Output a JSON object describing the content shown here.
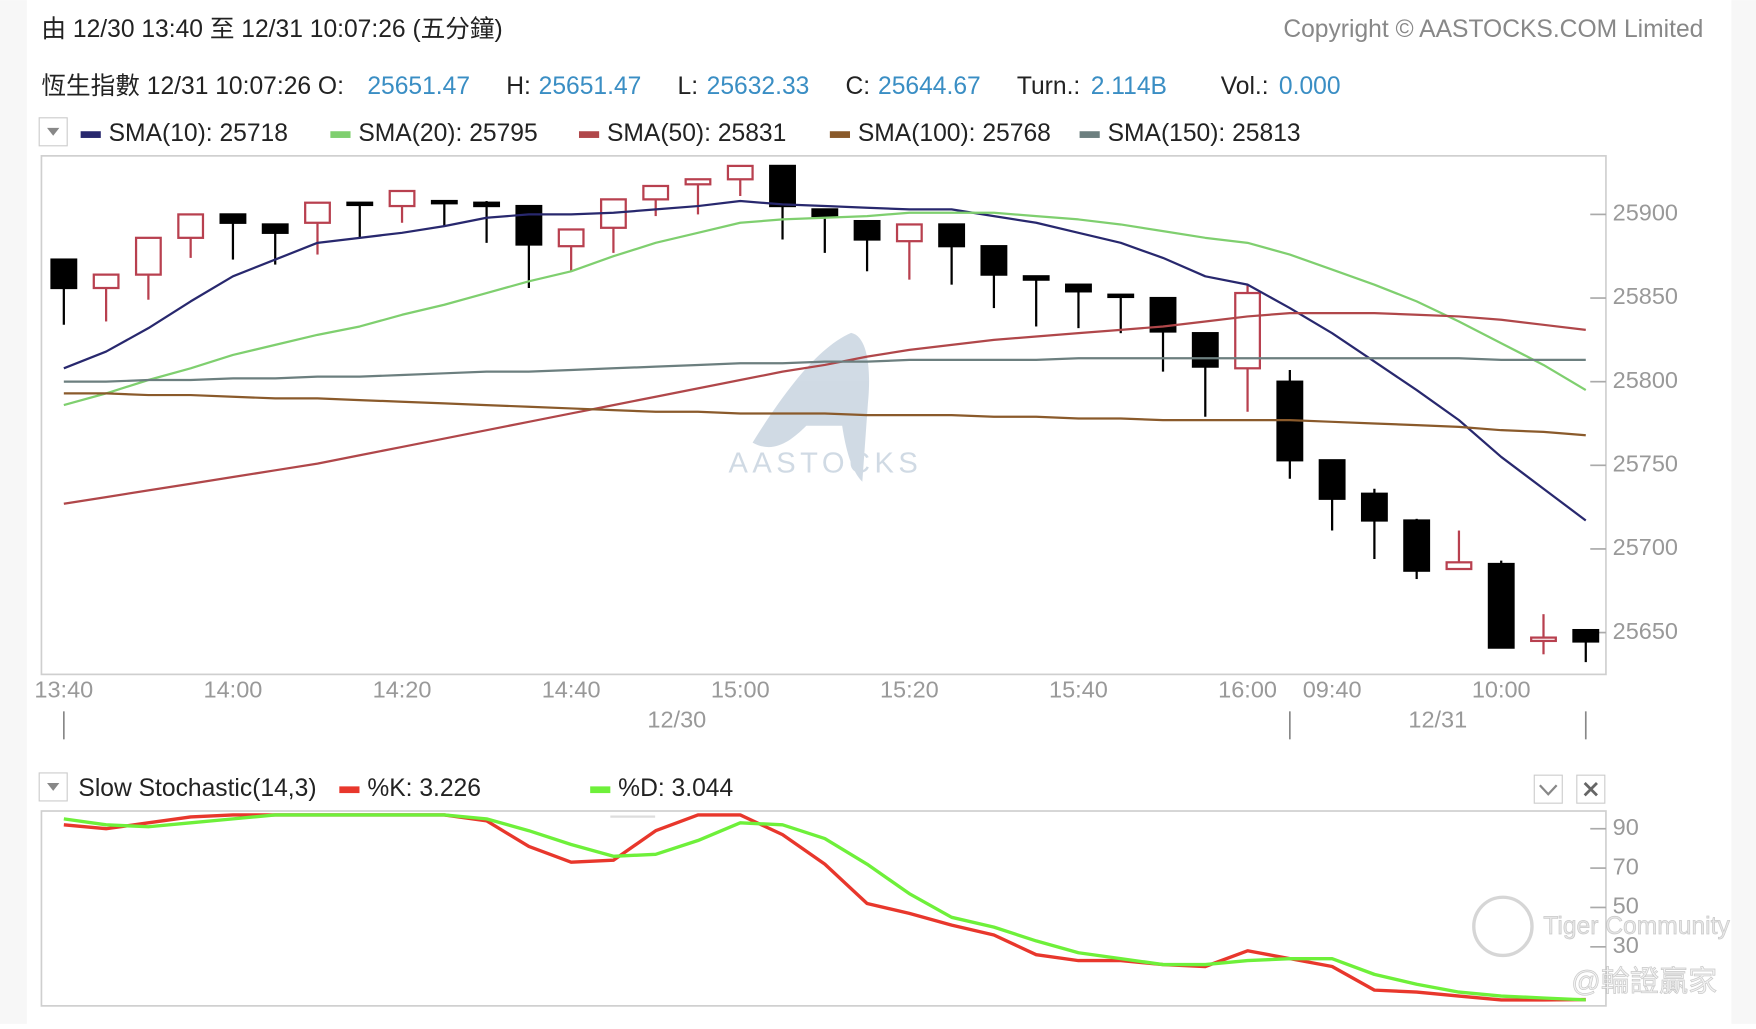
{
  "header": {
    "range": "由  12/30 13:40 至  12/31 10:07:26 (五分鐘)",
    "copyright": "Copyright © AASTOCKS.COM Limited",
    "quote": {
      "name": "恆生指數 12/31 10:07:26 O:",
      "open": "25651.47",
      "high_label": "H:",
      "high": "25651.47",
      "low_label": "L:",
      "low": "25632.33",
      "close_label": "C:",
      "close": "25644.67",
      "turnover_label": "Turn.:",
      "turnover": "2.114B",
      "volume_label": "Vol.:",
      "volume": "0.000"
    }
  },
  "watermarks": [
    "AASTOCKS",
    "Tiger Community",
    "@輪證贏家"
  ],
  "chart_data": [
    {
      "type": "candlestick",
      "categories": [
        "13:40",
        null,
        null,
        null,
        "14:00",
        null,
        null,
        null,
        "14:20",
        null,
        null,
        null,
        "14:40",
        null,
        null,
        null,
        "15:00",
        null,
        null,
        null,
        "15:20",
        null,
        null,
        null,
        "15:40",
        null,
        null,
        null,
        "16:00",
        null,
        "09:40",
        null,
        null,
        null,
        "10:00",
        null,
        null
      ],
      "x_groups": [
        "12/30",
        "12/31"
      ],
      "open": [
        25873,
        25856,
        25864,
        25886,
        25900,
        25894,
        25895,
        25907,
        25905,
        25908,
        25907,
        25905,
        25881,
        25892,
        25909,
        25918,
        25921,
        25929,
        25903,
        25896,
        25884,
        25894,
        25881,
        25863,
        25858,
        25852,
        25850,
        25829,
        25808,
        25800,
        25753,
        25733,
        25717,
        25688,
        25691,
        25645,
        25651.47
      ],
      "high": [
        25873,
        25864,
        25886,
        25900,
        25900,
        25894,
        25907,
        25907,
        25914,
        25908,
        25908,
        25905,
        25891,
        25909,
        25917,
        25921,
        25929,
        25929,
        25903,
        25896,
        25894,
        25894,
        25881,
        25863,
        25858,
        25852,
        25850,
        25829,
        25858,
        25807,
        25753,
        25736,
        25718,
        25711,
        25693,
        25661,
        25651.47
      ],
      "low": [
        25834,
        25836,
        25849,
        25874,
        25873,
        25870,
        25876,
        25886,
        25895,
        25893,
        25883,
        25856,
        25866,
        25877,
        25899,
        25900,
        25911,
        25885,
        25877,
        25866,
        25861,
        25858,
        25844,
        25833,
        25832,
        25829,
        25806,
        25779,
        25782,
        25742,
        25711,
        25694,
        25682,
        25688,
        25641,
        25637,
        25632.33
      ],
      "close": [
        25856,
        25864,
        25886,
        25900,
        25895,
        25889,
        25907,
        25906,
        25914,
        25907,
        25905,
        25882,
        25891,
        25909,
        25917,
        25921,
        25929,
        25905,
        25899,
        25885,
        25894,
        25881,
        25864,
        25861,
        25854,
        25851,
        25830,
        25809,
        25853,
        25753,
        25730,
        25717,
        25687,
        25692,
        25641,
        25647,
        25644.67
      ],
      "up_color": "#b8404f",
      "down_color": "#000000",
      "series": [
        {
          "name": "SMA(10): 25718",
          "color": "#28286e",
          "values": [
            25808,
            25818,
            25832,
            25848,
            25863,
            25873,
            25883,
            25886,
            25889,
            25893,
            25898,
            25900,
            25900,
            25901,
            25903,
            25905,
            25908,
            25906,
            25905,
            25904,
            25903,
            25903,
            25899,
            25895,
            25889,
            25883,
            25874,
            25863,
            25858,
            25844,
            25829,
            25812,
            25795,
            25777,
            25755,
            25736,
            25717
          ]
        },
        {
          "name": "SMA(20): 25795",
          "color": "#7fcf6f",
          "values": [
            25786,
            25793,
            25801,
            25808,
            25816,
            25822,
            25828,
            25833,
            25840,
            25846,
            25853,
            25860,
            25866,
            25875,
            25883,
            25889,
            25895,
            25897,
            25898,
            25899,
            25901,
            25901,
            25901,
            25899,
            25897,
            25894,
            25890,
            25886,
            25883,
            25876,
            25867,
            25858,
            25848,
            25836,
            25823,
            25810,
            25795
          ]
        },
        {
          "name": "SMA(50): 25831",
          "color": "#b0474a",
          "values": [
            25727,
            25731,
            25735,
            25739,
            25743,
            25747,
            25751,
            25756,
            25761,
            25766,
            25771,
            25776,
            25781,
            25786,
            25791,
            25796,
            25801,
            25806,
            25810,
            25815,
            25819,
            25822,
            25825,
            25827,
            25829,
            25831,
            25833,
            25836,
            25839,
            25841,
            25841,
            25841,
            25840,
            25839,
            25837,
            25834,
            25831
          ]
        },
        {
          "name": "SMA(100): 25768",
          "color": "#8a5a2b",
          "values": [
            25793,
            25793,
            25792,
            25792,
            25791,
            25790,
            25790,
            25789,
            25788,
            25787,
            25786,
            25785,
            25784,
            25783,
            25782,
            25782,
            25781,
            25781,
            25781,
            25780,
            25780,
            25780,
            25779,
            25779,
            25778,
            25778,
            25777,
            25777,
            25777,
            25777,
            25776,
            25775,
            25774,
            25773,
            25771,
            25770,
            25768
          ]
        },
        {
          "name": "SMA(150): 25813",
          "color": "#6c7f7f",
          "values": [
            25800,
            25800,
            25801,
            25801,
            25802,
            25802,
            25803,
            25803,
            25804,
            25805,
            25806,
            25806,
            25807,
            25808,
            25809,
            25810,
            25811,
            25811,
            25812,
            25812,
            25813,
            25813,
            25813,
            25813,
            25814,
            25814,
            25814,
            25814,
            25814,
            25814,
            25814,
            25814,
            25814,
            25814,
            25813,
            25813,
            25813
          ]
        }
      ],
      "ylim": [
        25625,
        25935
      ],
      "yticks": [
        25650,
        25700,
        25750,
        25800,
        25850,
        25900
      ]
    },
    {
      "type": "line",
      "title": "Slow Stochastic(14,3)",
      "series": [
        {
          "name": "%K: 3.226",
          "color": "#e8372c",
          "values": [
            92,
            90,
            93,
            96,
            97,
            97,
            97,
            97,
            97,
            97,
            94,
            81,
            73,
            74,
            89,
            97,
            97,
            87,
            72,
            52,
            47,
            41,
            36,
            26,
            23,
            23,
            21,
            20,
            28,
            24,
            20,
            8,
            7,
            5,
            3,
            3,
            3.226
          ]
        },
        {
          "name": "%D: 3.044",
          "color": "#6ef03a",
          "values": [
            95,
            92,
            91,
            93,
            95,
            97,
            97,
            97,
            97,
            97,
            95,
            89,
            82,
            76,
            77,
            84,
            93,
            92,
            85,
            72,
            57,
            45,
            40,
            33,
            27,
            24,
            21,
            21,
            23,
            24,
            24,
            16,
            11,
            7,
            5,
            4,
            3.044
          ]
        }
      ],
      "ylim": [
        0,
        99
      ],
      "yticks": [
        30,
        50,
        70,
        90
      ]
    }
  ]
}
